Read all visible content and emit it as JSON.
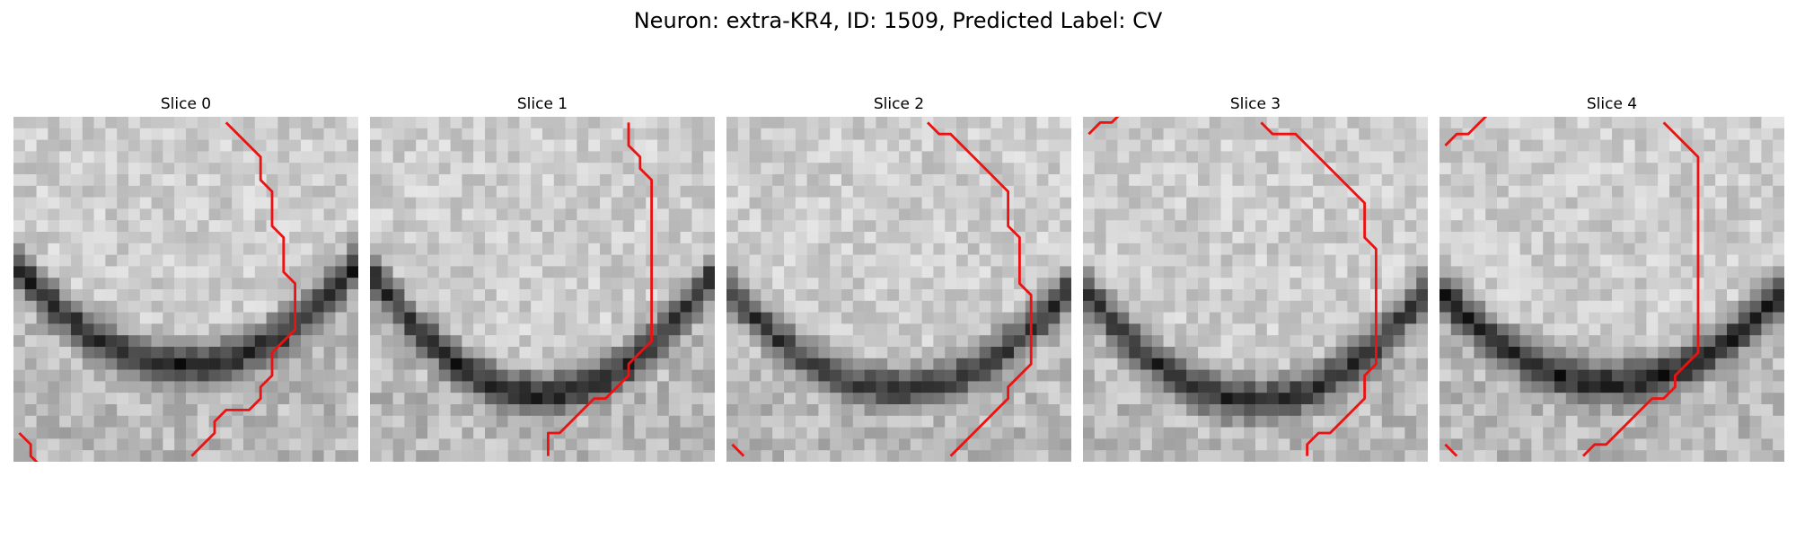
{
  "figure": {
    "title": "Neuron: extra-KR4, ID: 1509, Predicted Label: CV"
  },
  "slices": [
    {
      "title": "Slice 0",
      "seed": 11,
      "darkband": {
        "center_row": 21.0,
        "curve": 0.01,
        "strength": 150
      },
      "contour": [
        [
          18,
          0
        ],
        [
          21,
          3
        ],
        [
          21,
          5
        ],
        [
          22,
          6
        ],
        [
          22,
          9
        ],
        [
          23,
          10
        ],
        [
          23,
          13
        ],
        [
          24,
          14
        ],
        [
          24,
          18
        ],
        [
          23,
          19
        ],
        [
          22,
          20
        ],
        [
          22,
          22
        ],
        [
          21,
          23
        ],
        [
          21,
          24
        ],
        [
          20,
          25
        ],
        [
          18,
          25
        ],
        [
          17,
          26
        ],
        [
          17,
          27
        ],
        [
          16,
          28
        ],
        [
          15,
          29
        ]
      ],
      "corner": [
        [
          0,
          27
        ],
        [
          1,
          28
        ],
        [
          1,
          29
        ],
        [
          2,
          30
        ]
      ]
    },
    {
      "title": "Slice 1",
      "seed": 23,
      "darkband": {
        "center_row": 23.5,
        "curve": 0.012,
        "strength": 145
      },
      "contour": [
        [
          22,
          0
        ],
        [
          22,
          2
        ],
        [
          23,
          3
        ],
        [
          23,
          4
        ],
        [
          24,
          5
        ],
        [
          24,
          19
        ],
        [
          23,
          20
        ],
        [
          22,
          21
        ],
        [
          22,
          22
        ],
        [
          21,
          23
        ],
        [
          20,
          24
        ],
        [
          19,
          24
        ],
        [
          18,
          25
        ],
        [
          17,
          26
        ],
        [
          16,
          27
        ],
        [
          15,
          27
        ],
        [
          15,
          29
        ]
      ]
    },
    {
      "title": "Slice 2",
      "seed": 37,
      "darkband": {
        "center_row": 23.0,
        "curve": 0.01,
        "strength": 130
      },
      "contour": [
        [
          17,
          0
        ],
        [
          18,
          1
        ],
        [
          19,
          1
        ],
        [
          21,
          3
        ],
        [
          24,
          6
        ],
        [
          24,
          9
        ],
        [
          25,
          10
        ],
        [
          25,
          14
        ],
        [
          26,
          15
        ],
        [
          26,
          21
        ],
        [
          25,
          22
        ],
        [
          24,
          23
        ],
        [
          24,
          24
        ],
        [
          23,
          25
        ],
        [
          22,
          26
        ],
        [
          19,
          29
        ]
      ],
      "corner": [
        [
          0,
          28
        ],
        [
          1,
          29
        ]
      ]
    },
    {
      "title": "Slice 3",
      "seed": 53,
      "darkband": {
        "center_row": 24.0,
        "curve": 0.011,
        "strength": 140
      },
      "contour": [
        [
          15,
          0
        ],
        [
          16,
          1
        ],
        [
          18,
          1
        ],
        [
          24,
          7
        ],
        [
          24,
          10
        ],
        [
          25,
          11
        ],
        [
          25,
          21
        ],
        [
          24,
          22
        ],
        [
          24,
          24
        ],
        [
          23,
          25
        ],
        [
          22,
          26
        ],
        [
          21,
          27
        ],
        [
          20,
          27
        ],
        [
          19,
          28
        ],
        [
          19,
          29
        ]
      ],
      "corner": [
        [
          0,
          29
        ]
      ],
      "corner_top": [
        [
          0,
          1
        ],
        [
          1,
          0
        ],
        [
          2,
          0
        ],
        [
          3,
          -1
        ]
      ]
    },
    {
      "title": "Slice 4",
      "seed": 71,
      "darkband": {
        "center_row": 22.5,
        "curve": 0.009,
        "strength": 155
      },
      "contour": [
        [
          19,
          0
        ],
        [
          22,
          3
        ],
        [
          22,
          20
        ],
        [
          21,
          21
        ],
        [
          20,
          22
        ],
        [
          20,
          23
        ],
        [
          19,
          24
        ],
        [
          18,
          24
        ],
        [
          17,
          25
        ],
        [
          14,
          28
        ],
        [
          13,
          28
        ],
        [
          12,
          29
        ]
      ],
      "corner": [
        [
          0,
          28
        ],
        [
          1,
          29
        ]
      ],
      "corner_top": [
        [
          0,
          2
        ],
        [
          1,
          1
        ],
        [
          2,
          1
        ],
        [
          3,
          0
        ],
        [
          4,
          -1
        ]
      ]
    }
  ],
  "contour_color": "#ee1111",
  "colormap": "gray"
}
